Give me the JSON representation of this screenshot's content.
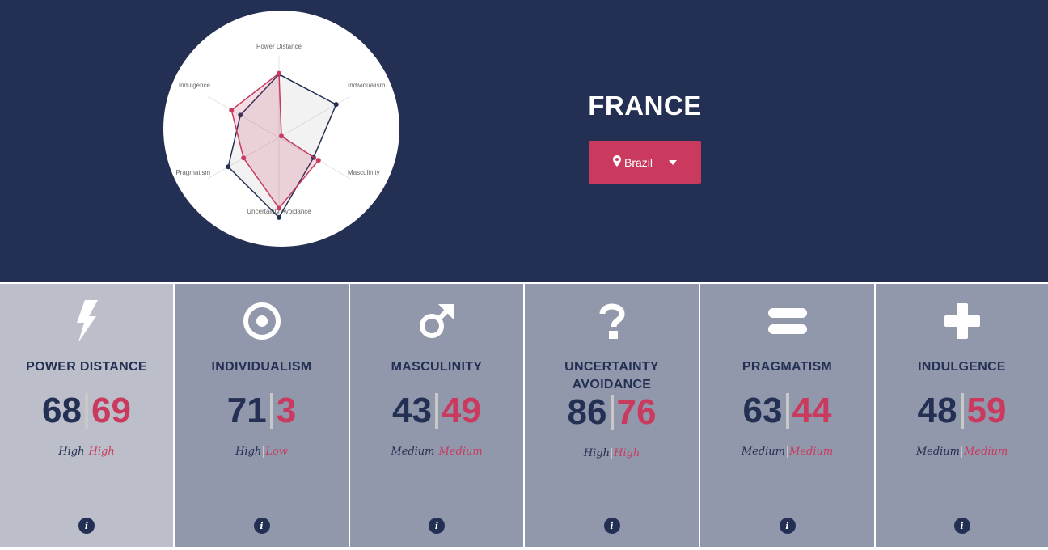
{
  "country": {
    "title": "FRANCE",
    "compare_selected": "Brazil"
  },
  "colors": {
    "primary": "#243053",
    "compare": "#c93a5e",
    "card": "#9198ab",
    "card_active": "#bcbfca"
  },
  "chart_data": {
    "type": "radar",
    "axes": [
      "Power Distance",
      "Individualism",
      "Masculinity",
      "Uncertainty Avoidance",
      "Pragmatism",
      "Indulgence"
    ],
    "series": [
      {
        "name": "FRANCE",
        "values": [
          68,
          71,
          43,
          86,
          63,
          48
        ]
      },
      {
        "name": "Brazil",
        "values": [
          69,
          3,
          49,
          76,
          44,
          59
        ]
      }
    ],
    "range": [
      0,
      100
    ]
  },
  "dimensions": [
    {
      "title": "POWER DISTANCE",
      "icon": "lightning-bolt-icon",
      "a": "68",
      "b": "69",
      "level_a": "High",
      "level_b": "High",
      "active": true
    },
    {
      "title": "INDIVIDUALISM",
      "icon": "target-icon",
      "a": "71",
      "b": "3",
      "level_a": "High",
      "level_b": "Low",
      "active": false
    },
    {
      "title": "MASCULINITY",
      "icon": "male-symbol-icon",
      "a": "43",
      "b": "49",
      "level_a": "Medium",
      "level_b": "Medium",
      "active": false
    },
    {
      "title": "UNCERTAINTY AVOIDANCE",
      "icon": "question-mark-icon",
      "a": "86",
      "b": "76",
      "level_a": "High",
      "level_b": "High",
      "active": false
    },
    {
      "title": "PRAGMATISM",
      "icon": "equals-icon",
      "a": "63",
      "b": "44",
      "level_a": "Medium",
      "level_b": "Medium",
      "active": false
    },
    {
      "title": "INDULGENCE",
      "icon": "plus-icon",
      "a": "48",
      "b": "59",
      "level_a": "Medium",
      "level_b": "Medium",
      "active": false
    }
  ],
  "info_label": "i"
}
